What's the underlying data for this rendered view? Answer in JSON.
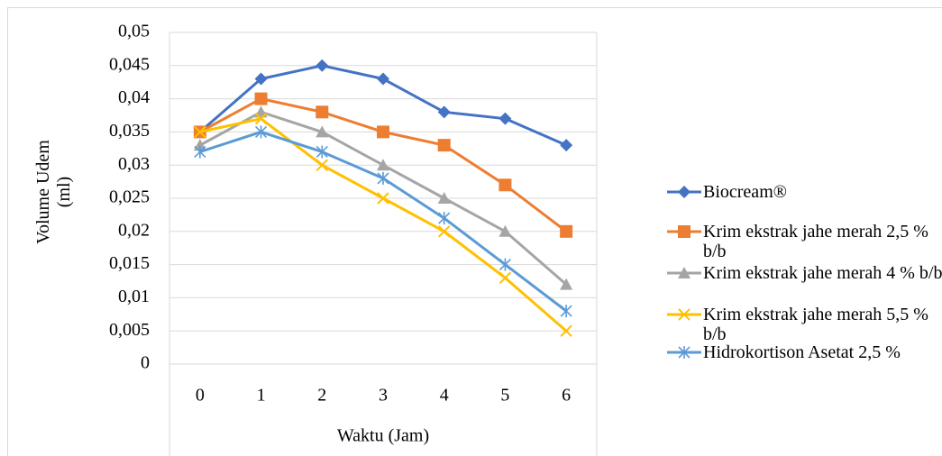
{
  "chart_data": {
    "type": "line",
    "x_label": "Waktu (Jam)",
    "y_label": "Volume Udem (ml)",
    "categories": [
      "0",
      "1",
      "2",
      "3",
      "4",
      "5",
      "6"
    ],
    "series": [
      {
        "name": "Biocream®",
        "color": "#4472c4",
        "marker": "diamond",
        "values": [
          0.035,
          0.043,
          0.045,
          0.043,
          0.038,
          0.037,
          0.033
        ]
      },
      {
        "name": "Krim ekstrak jahe merah 2,5 % b/b",
        "color": "#ed7d31",
        "marker": "square",
        "values": [
          0.035,
          0.04,
          0.038,
          0.035,
          0.033,
          0.027,
          0.02
        ]
      },
      {
        "name": "Krim ekstrak jahe merah 4 % b/b",
        "color": "#a5a5a5",
        "marker": "triangle",
        "values": [
          0.033,
          0.038,
          0.035,
          0.03,
          0.025,
          0.02,
          0.012
        ]
      },
      {
        "name": "Krim ekstrak jahe merah 5,5 % b/b",
        "color": "#ffc000",
        "marker": "x",
        "values": [
          0.035,
          0.037,
          0.03,
          0.025,
          0.02,
          0.013,
          0.005
        ]
      },
      {
        "name": "Hidrokortison Asetat 2,5 %",
        "color": "#5b9bd5",
        "marker": "star",
        "values": [
          0.032,
          0.035,
          0.032,
          0.028,
          0.022,
          0.015,
          0.008
        ]
      }
    ],
    "ylim": [
      0,
      0.05
    ],
    "yticks": [
      0,
      {
        "value": 0.005,
        "label": "0,005"
      },
      {
        "value": 0.01,
        "label": "0,01"
      },
      {
        "value": 0.015,
        "label": "0,015"
      },
      {
        "value": 0.02,
        "label": "0,02"
      },
      {
        "value": 0.025,
        "label": "0,025"
      },
      {
        "value": 0.03,
        "label": "0,03"
      },
      {
        "value": 0.035,
        "label": "0,035"
      },
      {
        "value": 0.04,
        "label": "0,04"
      },
      {
        "value": 0.045,
        "label": "0,045"
      },
      {
        "value": 0.05,
        "label": "0,05"
      }
    ],
    "grid": true,
    "legend": "right"
  }
}
